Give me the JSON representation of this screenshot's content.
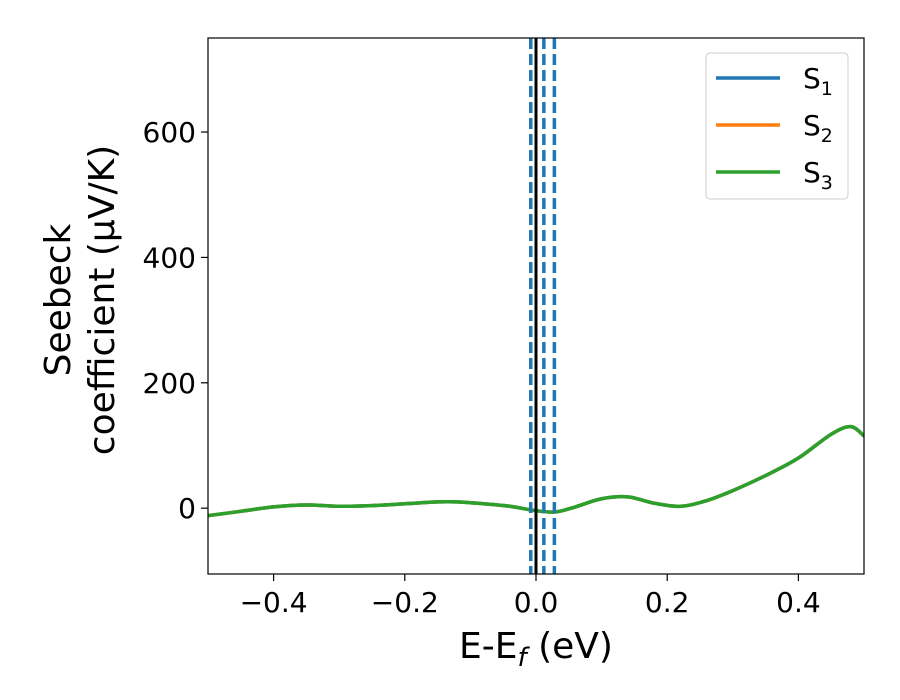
{
  "chart_data": {
    "type": "line",
    "xlabel": {
      "main": "E-E",
      "sub": "f",
      "unit": " (eV)"
    },
    "ylabel": {
      "line1": "Seebeck",
      "line2": "coefficient  (μV/K)"
    },
    "xlim": [
      -0.5,
      0.5
    ],
    "ylim": [
      -105,
      750
    ],
    "x_ticks": [
      -0.4,
      -0.2,
      0.0,
      0.2,
      0.4
    ],
    "x_tick_labels": [
      "−0.4",
      "−0.2",
      "0.0",
      "0.2",
      "0.4"
    ],
    "y_ticks": [
      0,
      200,
      400,
      600
    ],
    "y_tick_labels": [
      "0",
      "200",
      "400",
      "600"
    ],
    "grid": false,
    "legend": {
      "placement": "top-right",
      "entries": [
        {
          "label": "S",
          "sub": "1",
          "color": "#1f77b4"
        },
        {
          "label": "S",
          "sub": "2",
          "color": "#ff7f0e"
        },
        {
          "label": "S",
          "sub": "3",
          "color": "#2ca02c"
        }
      ]
    },
    "fermi_line": {
      "x": 0.0,
      "color": "#000000"
    },
    "dashed_vlines": [
      {
        "x": -0.008,
        "color": "#1f77b4"
      },
      {
        "x": 0.012,
        "color": "#1f77b4"
      },
      {
        "x": 0.028,
        "color": "#1f77b4"
      }
    ],
    "series": [
      {
        "name": "S1",
        "color": "#1f77b4",
        "x": [
          -0.5,
          -0.45,
          -0.4,
          -0.35,
          -0.3,
          -0.25,
          -0.2,
          -0.15,
          -0.12,
          -0.08,
          -0.04,
          0.0,
          0.03,
          0.06,
          0.1,
          0.14,
          0.18,
          0.22,
          0.26,
          0.3,
          0.35,
          0.4,
          0.45,
          0.48,
          0.5
        ],
        "values": [
          -12,
          -5,
          2,
          5,
          3,
          4,
          7,
          10,
          10,
          7,
          3,
          -4,
          -6,
          2,
          15,
          18,
          8,
          3,
          12,
          28,
          52,
          80,
          118,
          130,
          115
        ]
      },
      {
        "name": "S2",
        "color": "#ff7f0e",
        "x": [
          -0.5,
          -0.45,
          -0.4,
          -0.35,
          -0.3,
          -0.25,
          -0.2,
          -0.15,
          -0.12,
          -0.08,
          -0.04,
          0.0,
          0.03,
          0.06,
          0.1,
          0.14,
          0.18,
          0.22,
          0.26,
          0.3,
          0.35,
          0.4,
          0.45,
          0.48,
          0.5
        ],
        "values": [
          -12,
          -5,
          2,
          5,
          3,
          4,
          7,
          10,
          10,
          7,
          3,
          -4,
          -6,
          2,
          15,
          18,
          8,
          3,
          12,
          28,
          52,
          80,
          118,
          130,
          115
        ]
      },
      {
        "name": "S3",
        "color": "#2ca02c",
        "x": [
          -0.5,
          -0.45,
          -0.4,
          -0.35,
          -0.3,
          -0.25,
          -0.2,
          -0.15,
          -0.12,
          -0.08,
          -0.04,
          0.0,
          0.03,
          0.06,
          0.1,
          0.14,
          0.18,
          0.22,
          0.26,
          0.3,
          0.35,
          0.4,
          0.45,
          0.48,
          0.5
        ],
        "values": [
          -12,
          -5,
          2,
          5,
          3,
          4,
          7,
          10,
          10,
          7,
          3,
          -4,
          -6,
          2,
          15,
          18,
          8,
          3,
          12,
          28,
          52,
          80,
          118,
          130,
          115
        ]
      }
    ]
  }
}
